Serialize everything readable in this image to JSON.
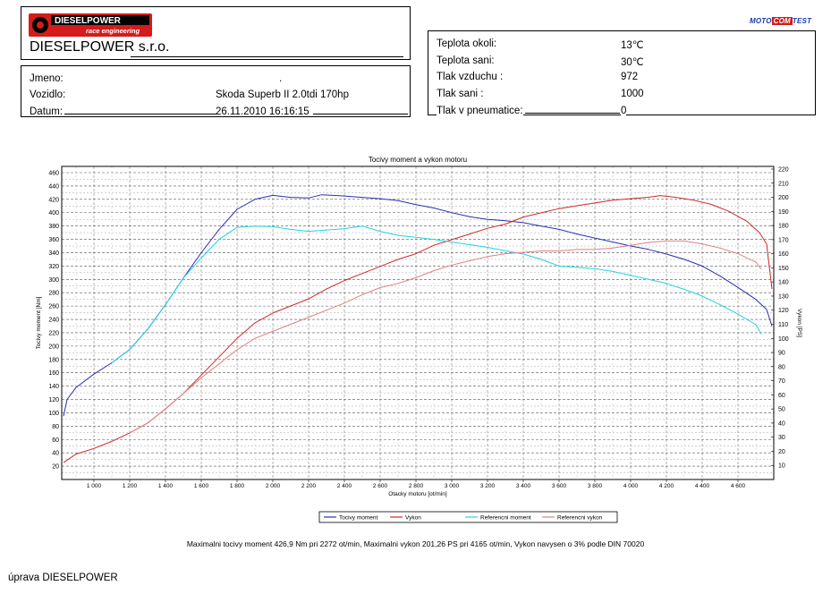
{
  "header": {
    "logo_brand": "DIESELPOWER",
    "logo_tagline": "race engineering",
    "company": "DIESELPOWER s.r.o.",
    "test_badge": {
      "moto": "MOTO",
      "com": "COM",
      "test": "TEST"
    }
  },
  "vehicle": {
    "name_label": "Jmeno:",
    "name_value": ".",
    "vehicle_label": "Vozidlo:",
    "vehicle_value": "Skoda Superb II 2.0tdi 170hp",
    "date_label": "Datum:",
    "date_value": "26.11.2010 16:16:15"
  },
  "conditions": [
    {
      "label": "Teplota okoli:",
      "value": "13℃"
    },
    {
      "label": "Teplota sani:",
      "value": "30℃"
    },
    {
      "label": "Tlak vzduchu :",
      "value": "972"
    },
    {
      "label": "Tlak sani :",
      "value": "1000"
    },
    {
      "label": "Tlak v pneumatice:",
      "value": "0"
    }
  ],
  "chart_data": {
    "type": "line",
    "title": "Tocivy moment a vykon motoru",
    "xlabel": "Otacky motoru [ot/min]",
    "ylabel_left": "Tocivy moment [Nm]",
    "ylabel_right": "Vykon [PS]",
    "xlim": [
      820,
      4800
    ],
    "ylim_left": [
      0,
      460
    ],
    "ylim_right": [
      0,
      220
    ],
    "x_ticks": [
      "1 000",
      "1 200",
      "1 400",
      "1 600",
      "1 800",
      "2 000",
      "2 200",
      "2 400",
      "2 600",
      "2 800",
      "3 000",
      "3 200",
      "3 400",
      "3 600",
      "3 800",
      "4 000",
      "4 200",
      "4 400",
      "4 600"
    ],
    "y_left_ticks": [
      "20",
      "40",
      "60",
      "80",
      "100",
      "120",
      "140",
      "160",
      "180",
      "200",
      "220",
      "240",
      "260",
      "280",
      "300",
      "320",
      "340",
      "360",
      "380",
      "400",
      "420",
      "440",
      "460"
    ],
    "y_right_ticks": [
      "10",
      "20",
      "30",
      "40",
      "50",
      "60",
      "70",
      "80",
      "90",
      "100",
      "110",
      "120",
      "130",
      "140",
      "150",
      "160",
      "170",
      "180",
      "190",
      "200",
      "210",
      "220"
    ],
    "grid": true,
    "legend_position": "bottom",
    "series": [
      {
        "name": "Tocivy moment",
        "axis": "left",
        "color": "#2b2fb0",
        "x": [
          830,
          850,
          900,
          1000,
          1100,
          1200,
          1300,
          1400,
          1500,
          1600,
          1700,
          1800,
          1900,
          2000,
          2100,
          2200,
          2272,
          2400,
          2500,
          2600,
          2700,
          2800,
          2900,
          3000,
          3100,
          3200,
          3300,
          3400,
          3500,
          3600,
          3700,
          3800,
          3900,
          4000,
          4100,
          4200,
          4300,
          4400,
          4500,
          4600,
          4700,
          4760,
          4790
        ],
        "values": [
          95,
          120,
          138,
          158,
          175,
          195,
          225,
          262,
          302,
          340,
          375,
          405,
          420,
          426,
          423,
          422,
          426.9,
          425,
          423,
          421,
          418,
          412,
          407,
          400,
          394,
          390,
          388,
          385,
          380,
          375,
          368,
          362,
          356,
          350,
          345,
          338,
          330,
          320,
          305,
          288,
          270,
          255,
          230
        ]
      },
      {
        "name": "Vykon",
        "axis": "right",
        "color": "#d02828",
        "x": [
          830,
          900,
          1000,
          1100,
          1200,
          1300,
          1400,
          1500,
          1600,
          1700,
          1800,
          1900,
          2000,
          2100,
          2200,
          2300,
          2400,
          2500,
          2600,
          2700,
          2800,
          2900,
          3000,
          3100,
          3200,
          3300,
          3400,
          3500,
          3600,
          3700,
          3800,
          3900,
          4000,
          4100,
          4165,
          4250,
          4350,
          4450,
          4550,
          4650,
          4720,
          4760,
          4790
        ],
        "values": [
          12,
          18,
          22,
          27,
          33,
          40,
          50,
          61,
          74,
          87,
          100,
          111,
          118,
          123,
          128,
          135,
          141,
          146,
          151,
          156,
          160,
          166,
          170,
          174,
          178,
          181,
          186,
          189,
          192,
          194,
          196,
          198,
          199,
          200,
          201.26,
          200,
          198,
          195,
          190,
          183,
          175,
          167,
          135
        ]
      },
      {
        "name": "Referencni moment",
        "axis": "left",
        "color": "#20d4e4",
        "x": [
          1100,
          1200,
          1300,
          1400,
          1500,
          1600,
          1700,
          1800,
          1900,
          2000,
          2100,
          2200,
          2300,
          2400,
          2500,
          2600,
          2700,
          2800,
          2900,
          3000,
          3100,
          3200,
          3300,
          3400,
          3500,
          3600,
          3700,
          3800,
          3900,
          4000,
          4100,
          4200,
          4300,
          4400,
          4500,
          4600,
          4700,
          4730
        ],
        "values": [
          175,
          195,
          225,
          262,
          302,
          332,
          360,
          378,
          380,
          379,
          375,
          372,
          374,
          376,
          380,
          372,
          366,
          363,
          360,
          356,
          352,
          348,
          343,
          338,
          330,
          320,
          318,
          316,
          312,
          306,
          300,
          294,
          285,
          275,
          262,
          248,
          232,
          218
        ]
      },
      {
        "name": "Referencni vykon",
        "axis": "right",
        "color": "#e08080",
        "x": [
          1200,
          1300,
          1400,
          1500,
          1600,
          1700,
          1800,
          1900,
          2000,
          2100,
          2200,
          2300,
          2400,
          2500,
          2600,
          2700,
          2800,
          2900,
          3000,
          3100,
          3200,
          3300,
          3400,
          3500,
          3600,
          3700,
          3800,
          3900,
          4000,
          4100,
          4200,
          4300,
          4400,
          4500,
          4600,
          4700,
          4730
        ],
        "values": [
          33,
          40,
          50,
          61,
          72,
          82,
          92,
          100,
          105,
          110,
          115,
          120,
          125,
          131,
          136,
          139,
          143,
          148,
          152,
          155,
          158,
          160,
          161,
          162,
          162,
          163,
          163,
          164,
          166,
          168,
          169,
          169,
          167,
          164,
          160,
          154,
          149
        ]
      }
    ]
  },
  "footer": {
    "max_text": "Maximalni tocivy moment 426,9 Nm pri 2272 ot/min,  Maximalni vykon 201,26 PS pri 4165 ot/min,  Vykon navysen o 3% podle DIN 70020",
    "credit": "úprava DIESELPOWER"
  }
}
